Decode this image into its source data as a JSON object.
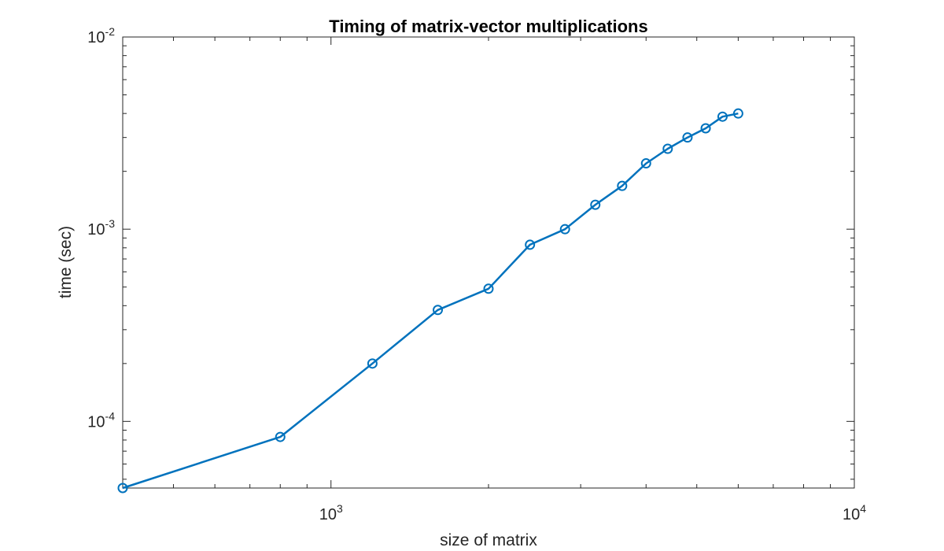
{
  "chart_data": {
    "type": "line",
    "title": "Timing of matrix-vector multiplications",
    "xlabel": "size of matrix",
    "ylabel": "time (sec)",
    "xscale": "log",
    "yscale": "log",
    "xlim": [
      400,
      10000
    ],
    "ylim": [
      4.5e-05,
      0.01
    ],
    "x_ticks": [
      {
        "base": "10",
        "exp": "3",
        "value": 1000
      },
      {
        "base": "10",
        "exp": "4",
        "value": 10000
      }
    ],
    "y_ticks": [
      {
        "base": "10",
        "exp": "-4",
        "value": 0.0001
      },
      {
        "base": "10",
        "exp": "-3",
        "value": 0.001
      },
      {
        "base": "10",
        "exp": "-2",
        "value": 0.01
      }
    ],
    "grid": false,
    "box": true,
    "series": [
      {
        "color": "#0072BD",
        "marker": "circle",
        "x": [
          400,
          800,
          1200,
          1600,
          2000,
          2400,
          2800,
          3200,
          3600,
          4000,
          4400,
          4800,
          5200,
          5600,
          6000
        ],
        "y": [
          4.5e-05,
          8.3e-05,
          0.0002,
          0.00038,
          0.00049,
          0.00083,
          0.001,
          0.00134,
          0.00168,
          0.0022,
          0.00262,
          0.003,
          0.00335,
          0.00385,
          0.004
        ]
      }
    ]
  }
}
